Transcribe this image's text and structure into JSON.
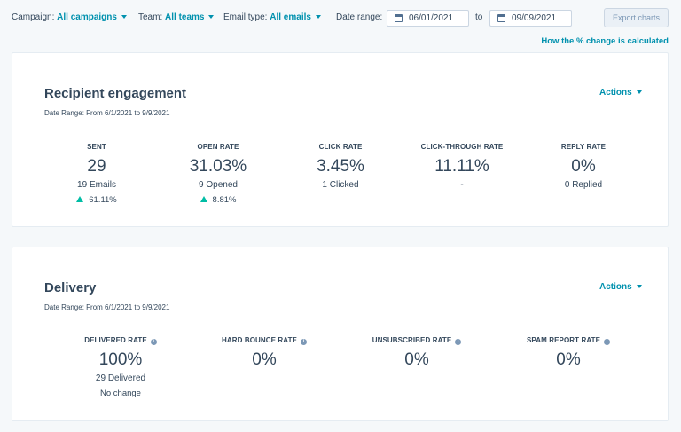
{
  "filters": {
    "campaign": {
      "label": "Campaign:",
      "value": "All campaigns"
    },
    "team": {
      "label": "Team:",
      "value": "All teams"
    },
    "email_type": {
      "label": "Email type:",
      "value": "All emails"
    },
    "date_range": {
      "label": "Date range:",
      "start": "06/01/2021",
      "to": "to",
      "end": "09/09/2021"
    }
  },
  "export_label": "Export charts",
  "how_link": "How the % change is calculated",
  "engagement": {
    "title": "Recipient engagement",
    "date_range": "Date Range: From 6/1/2021 to 9/9/2021",
    "actions": "Actions",
    "stats": [
      {
        "label": "SENT",
        "value": "29",
        "sub": "19 Emails",
        "delta": "61.11%"
      },
      {
        "label": "OPEN RATE",
        "value": "31.03%",
        "sub": "9 Opened",
        "delta": "8.81%"
      },
      {
        "label": "CLICK RATE",
        "value": "3.45%",
        "sub": "1 Clicked"
      },
      {
        "label": "CLICK-THROUGH RATE",
        "value": "11.11%",
        "sub": "-"
      },
      {
        "label": "REPLY RATE",
        "value": "0%",
        "sub": "0 Replied"
      }
    ]
  },
  "delivery": {
    "title": "Delivery",
    "date_range": "Date Range: From 6/1/2021 to 9/9/2021",
    "actions": "Actions",
    "stats": [
      {
        "label": "DELIVERED RATE",
        "value": "100%",
        "sub": "29 Delivered",
        "delta": "No change"
      },
      {
        "label": "HARD BOUNCE RATE",
        "value": "0%"
      },
      {
        "label": "UNSUBSCRIBED RATE",
        "value": "0%"
      },
      {
        "label": "SPAM REPORT RATE",
        "value": "0%"
      }
    ]
  },
  "icons": {
    "info": "info-icon",
    "calendar": "calendar-icon",
    "trend_up": "trend-up-icon",
    "dropdown": "chevron-down-icon"
  },
  "colors": {
    "accent": "#0091ae",
    "positive": "#00bda5",
    "text": "#33475b"
  }
}
